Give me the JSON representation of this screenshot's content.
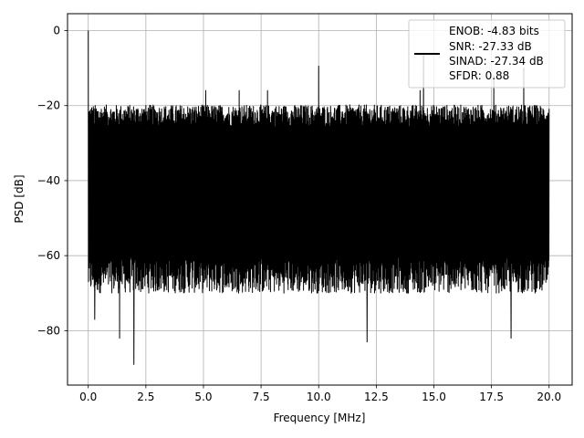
{
  "chart_data": {
    "type": "line",
    "title": "",
    "xlabel": "Frequency [MHz]",
    "ylabel": "PSD [dB]",
    "xlim": [
      -0.9,
      21.0
    ],
    "ylim": [
      -94.5,
      4.5
    ],
    "xticks": [
      0.0,
      2.5,
      5.0,
      7.5,
      10.0,
      12.5,
      15.0,
      17.5,
      20.0
    ],
    "xtick_labels": [
      "0.0",
      "2.5",
      "5.0",
      "7.5",
      "10.0",
      "12.5",
      "15.0",
      "17.5",
      "20.0"
    ],
    "yticks": [
      0,
      -20,
      -40,
      -60,
      -80
    ],
    "ytick_labels": [
      "0",
      "−20",
      "−40",
      "−60",
      "−80"
    ],
    "grid": true,
    "legend_position": "top-right",
    "line_color": "#000000",
    "series": [
      {
        "name": "ENOB: -4.83 bits\nSNR: -27.33 dB\nSINAD: -27.34 dB\nSFDR: 0.88",
        "x_range": [
          0.0,
          20.0
        ],
        "noise_floor_upper_db": -24,
        "noise_floor_lower_db": -65,
        "spurs": [
          {
            "x": 0.0,
            "y": 0.0
          },
          {
            "x": 0.06,
            "y": -30
          },
          {
            "x": 0.28,
            "y": -77
          },
          {
            "x": 1.36,
            "y": -82
          },
          {
            "x": 1.98,
            "y": -89
          },
          {
            "x": 5.1,
            "y": -16
          },
          {
            "x": 6.55,
            "y": -16
          },
          {
            "x": 7.78,
            "y": -16
          },
          {
            "x": 10.0,
            "y": -9.5
          },
          {
            "x": 12.1,
            "y": -83
          },
          {
            "x": 14.4,
            "y": -16
          },
          {
            "x": 14.55,
            "y": -6
          },
          {
            "x": 17.6,
            "y": -12
          },
          {
            "x": 18.35,
            "y": -82
          },
          {
            "x": 18.9,
            "y": -10
          }
        ]
      }
    ]
  },
  "legend": {
    "lines": [
      "ENOB: -4.83 bits",
      "SNR: -27.33 dB",
      "SINAD: -27.34 dB",
      "SFDR: 0.88"
    ]
  }
}
